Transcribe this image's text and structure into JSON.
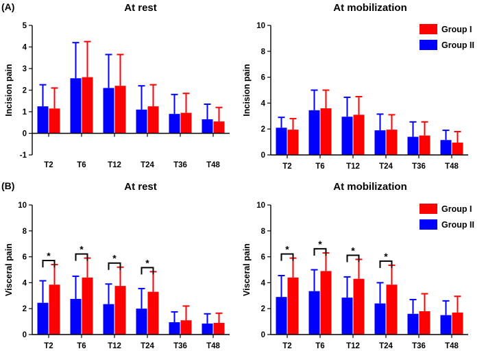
{
  "figure": {
    "panel_labels": [
      "(A)",
      "(B)"
    ]
  },
  "legend": {
    "items": [
      {
        "name": "Group I",
        "color": "#ff0000"
      },
      {
        "name": "Group II",
        "color": "#0000ff"
      }
    ]
  },
  "chart_data": [
    {
      "type": "bar",
      "panel": "(A)",
      "title": "At rest",
      "xlabel": "",
      "ylabel": "Incision pain",
      "ylim": [
        -1,
        5
      ],
      "yticks": [
        -1,
        0,
        1,
        2,
        3,
        4,
        5
      ],
      "categories": [
        "T2",
        "T6",
        "T12",
        "T24",
        "T36",
        "T48"
      ],
      "series": [
        {
          "name": "Group II",
          "color": "#0000ff",
          "values": [
            1.25,
            2.55,
            2.1,
            1.1,
            0.9,
            0.65
          ],
          "errors": [
            1.0,
            1.65,
            1.55,
            1.1,
            0.9,
            0.7
          ]
        },
        {
          "name": "Group I",
          "color": "#ff0000",
          "values": [
            1.15,
            2.6,
            2.2,
            1.25,
            0.95,
            0.55
          ],
          "errors": [
            0.95,
            1.65,
            1.45,
            1.0,
            0.9,
            0.65
          ]
        }
      ],
      "significance": [],
      "legend": false
    },
    {
      "type": "bar",
      "panel": "",
      "title": "At mobilization",
      "xlabel": "",
      "ylabel": "Incision pain",
      "ylim": [
        0,
        10
      ],
      "yticks": [
        0,
        2,
        4,
        6,
        8,
        10
      ],
      "categories": [
        "T2",
        "T6",
        "T12",
        "T24",
        "T36",
        "T48"
      ],
      "series": [
        {
          "name": "Group II",
          "color": "#0000ff",
          "values": [
            2.1,
            3.45,
            2.95,
            1.9,
            1.4,
            1.15
          ],
          "errors": [
            0.8,
            1.55,
            1.5,
            1.25,
            1.15,
            0.75
          ]
        },
        {
          "name": "Group I",
          "color": "#ff0000",
          "values": [
            1.95,
            3.6,
            3.1,
            1.95,
            1.5,
            0.95
          ],
          "errors": [
            0.85,
            1.4,
            1.4,
            1.15,
            1.05,
            0.85
          ]
        }
      ],
      "significance": [],
      "legend": true
    },
    {
      "type": "bar",
      "panel": "",
      "title": "At rest",
      "xlabel": "",
      "ylabel": "Visceral pain",
      "ylim": [
        0,
        10
      ],
      "yticks": [
        0,
        2,
        4,
        6,
        8,
        10
      ],
      "categories": [
        "T2",
        "T6",
        "T12",
        "T24",
        "T36",
        "T48"
      ],
      "series": [
        {
          "name": "Group II",
          "color": "#0000ff",
          "values": [
            2.45,
            2.75,
            2.35,
            2.0,
            0.95,
            0.85
          ],
          "errors": [
            1.7,
            1.75,
            1.55,
            1.55,
            0.8,
            0.75
          ]
        },
        {
          "name": "Group I",
          "color": "#ff0000",
          "values": [
            3.85,
            4.4,
            3.75,
            3.3,
            1.1,
            0.9
          ],
          "errors": [
            1.55,
            1.5,
            1.45,
            1.55,
            1.1,
            0.75
          ]
        }
      ],
      "significance": [
        {
          "category": "T2",
          "label": "*"
        },
        {
          "category": "T6",
          "label": "*"
        },
        {
          "category": "T12",
          "label": "*"
        },
        {
          "category": "T24",
          "label": "*"
        }
      ],
      "legend": false
    },
    {
      "type": "bar",
      "panel": "",
      "title": "At mobilization",
      "xlabel": "",
      "ylabel": "Visceral pain",
      "ylim": [
        0,
        10
      ],
      "yticks": [
        0,
        2,
        4,
        6,
        8,
        10
      ],
      "categories": [
        "T2",
        "T6",
        "T12",
        "T24",
        "T36",
        "T48"
      ],
      "series": [
        {
          "name": "Group II",
          "color": "#0000ff",
          "values": [
            2.9,
            3.35,
            2.85,
            2.4,
            1.6,
            1.5
          ],
          "errors": [
            1.65,
            1.65,
            1.6,
            1.6,
            1.1,
            1.1
          ]
        },
        {
          "name": "Group I",
          "color": "#ff0000",
          "values": [
            4.4,
            4.9,
            4.3,
            3.85,
            1.8,
            1.7
          ],
          "errors": [
            1.5,
            1.4,
            1.5,
            1.5,
            1.35,
            1.25
          ]
        }
      ],
      "significance": [
        {
          "category": "T2",
          "label": "*"
        },
        {
          "category": "T6",
          "label": "*"
        },
        {
          "category": "T12",
          "label": "*"
        },
        {
          "category": "T24",
          "label": "*"
        }
      ],
      "legend": true
    }
  ]
}
